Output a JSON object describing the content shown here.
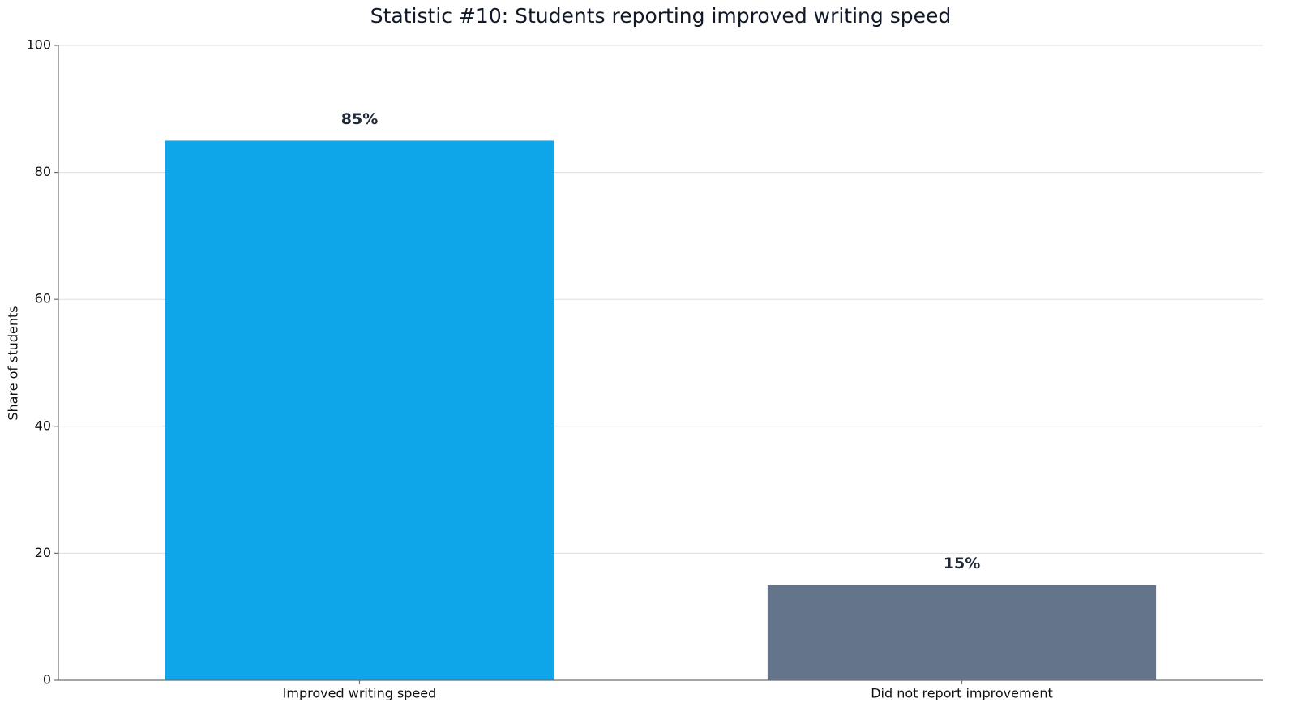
{
  "chart_data": {
    "type": "bar",
    "title": "Statistic #10: Students reporting improved writing speed",
    "y_label": "Share of students",
    "categories": [
      "Improved writing speed",
      "Did not report improvement"
    ],
    "values": [
      85,
      15
    ],
    "value_labels": [
      "85%",
      "15%"
    ],
    "colors": [
      "#0ea5e9",
      "#64748b"
    ],
    "ylim": [
      0,
      100
    ],
    "yticks": [
      0,
      20,
      40,
      60,
      80,
      100
    ],
    "grid": true
  }
}
